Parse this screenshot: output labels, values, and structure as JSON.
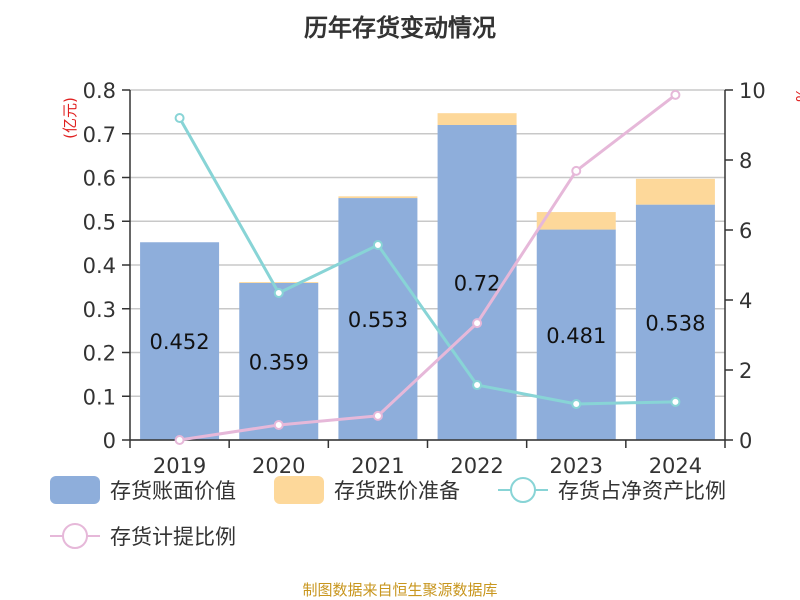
{
  "chart_data": {
    "type": "bar",
    "title": "历年存货变动情况",
    "ylabel": "(亿元)",
    "y2label": "%",
    "categories": [
      "2019",
      "2020",
      "2021",
      "2022",
      "2023",
      "2024"
    ],
    "ylim": [
      0,
      0.8
    ],
    "yticks": [
      "0",
      "0.1",
      "0.2",
      "0.3",
      "0.4",
      "0.5",
      "0.6",
      "0.7",
      "0.8"
    ],
    "y2lim": [
      0,
      10
    ],
    "y2ticks": [
      "0",
      "2",
      "4",
      "6",
      "8",
      "10"
    ],
    "series": [
      {
        "name": "存货账面价值",
        "type": "bar",
        "stack": true,
        "color": "#8eaedb",
        "values": [
          0.452,
          0.359,
          0.553,
          0.72,
          0.481,
          0.538
        ],
        "labels": [
          "0.452",
          "0.359",
          "0.553",
          "0.72",
          "0.481",
          "0.538"
        ]
      },
      {
        "name": "存货跌价准备",
        "type": "bar",
        "stack": true,
        "color": "#fdd89a",
        "values": [
          0,
          0.002,
          0.004,
          0.027,
          0.04,
          0.059
        ]
      },
      {
        "name": "存货占净资产比例",
        "type": "line",
        "axis": "right",
        "color": "#88d4d6",
        "values": [
          9.2,
          4.2,
          5.57,
          1.57,
          1.03,
          1.09
        ]
      },
      {
        "name": "存货计提比例",
        "type": "line",
        "axis": "right",
        "color": "#e6b8d9",
        "values": [
          0,
          0.43,
          0.69,
          3.34,
          7.69,
          9.86
        ]
      }
    ],
    "grid": true,
    "legend": "bottom"
  },
  "source": "制图数据来自恒生聚源数据库"
}
